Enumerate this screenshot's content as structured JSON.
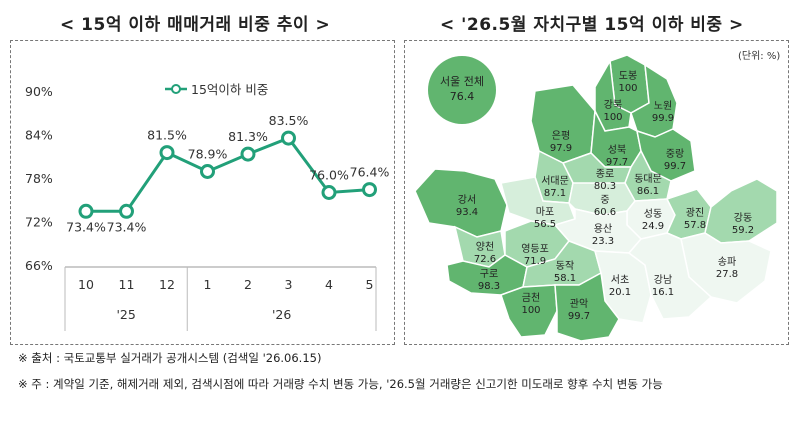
{
  "titles": {
    "left": "< 15억 이하 매매거래 비중 추이 >",
    "right": "< '26.5월 자치구별 15억 이하 비중 >"
  },
  "chart_data": {
    "type": "line",
    "title": "15억 이하 매매거래 비중 추이",
    "categories": [
      "10",
      "11",
      "12",
      "1",
      "2",
      "3",
      "4",
      "5"
    ],
    "year_groups": [
      {
        "label": "'25",
        "months": [
          "10",
          "11",
          "12"
        ]
      },
      {
        "label": "'26",
        "months": [
          "1",
          "2",
          "3",
          "4",
          "5"
        ]
      }
    ],
    "series": [
      {
        "name": "15억이하 비중",
        "values": [
          73.4,
          73.4,
          81.5,
          78.9,
          81.3,
          83.5,
          76.0,
          76.4
        ],
        "labels": [
          "73.4%",
          "73.4%",
          "81.5%",
          "78.9%",
          "81.3%",
          "83.5%",
          "76.0%",
          "76.4%"
        ]
      }
    ],
    "yticks": [
      "90%",
      "84%",
      "78%",
      "72%",
      "66%"
    ],
    "ylim": [
      66,
      90
    ],
    "grid": false,
    "legend": "top",
    "color": "#22a079"
  },
  "map": {
    "unit": "(단위: %)",
    "seoul_total_label": "서울 전체",
    "seoul_total_value": "76.4",
    "colors": {
      "high": "#61b56f",
      "mid": "#a3d9ae",
      "low": "#d6eedb",
      "lowest": "#eff7f1",
      "border": "#ffffff"
    },
    "districts": [
      {
        "name": "도봉",
        "value": "100"
      },
      {
        "name": "강북",
        "value": "100"
      },
      {
        "name": "노원",
        "value": "99.9"
      },
      {
        "name": "은평",
        "value": "97.9"
      },
      {
        "name": "성북",
        "value": "97.7"
      },
      {
        "name": "중랑",
        "value": "99.7"
      },
      {
        "name": "종로",
        "value": "80.3"
      },
      {
        "name": "서대문",
        "value": "87.1"
      },
      {
        "name": "동대문",
        "value": "86.1"
      },
      {
        "name": "강서",
        "value": "93.4"
      },
      {
        "name": "마포",
        "value": "56.5"
      },
      {
        "name": "중",
        "value": "60.6"
      },
      {
        "name": "성동",
        "value": "24.9"
      },
      {
        "name": "광진",
        "value": "57.8"
      },
      {
        "name": "용산",
        "value": "23.3"
      },
      {
        "name": "강동",
        "value": "59.2"
      },
      {
        "name": "양천",
        "value": "72.6"
      },
      {
        "name": "영등포",
        "value": "71.9"
      },
      {
        "name": "구로",
        "value": "98.3"
      },
      {
        "name": "동작",
        "value": "58.1"
      },
      {
        "name": "송파",
        "value": "27.8"
      },
      {
        "name": "서초",
        "value": "20.1"
      },
      {
        "name": "강남",
        "value": "16.1"
      },
      {
        "name": "금천",
        "value": "100"
      },
      {
        "name": "관악",
        "value": "99.7"
      }
    ]
  },
  "notes": {
    "source": "※ 출처 : 국토교통부 실거래가 공개시스템 (검색일 '26.06.15)",
    "remark": "※ 주 : 계약일 기준, 해제거래 제외, 검색시점에 따라 거래량 수치 변동 가능, '26.5월 거래량은 신고기한 미도래로 향후 수치 변동 가능"
  }
}
